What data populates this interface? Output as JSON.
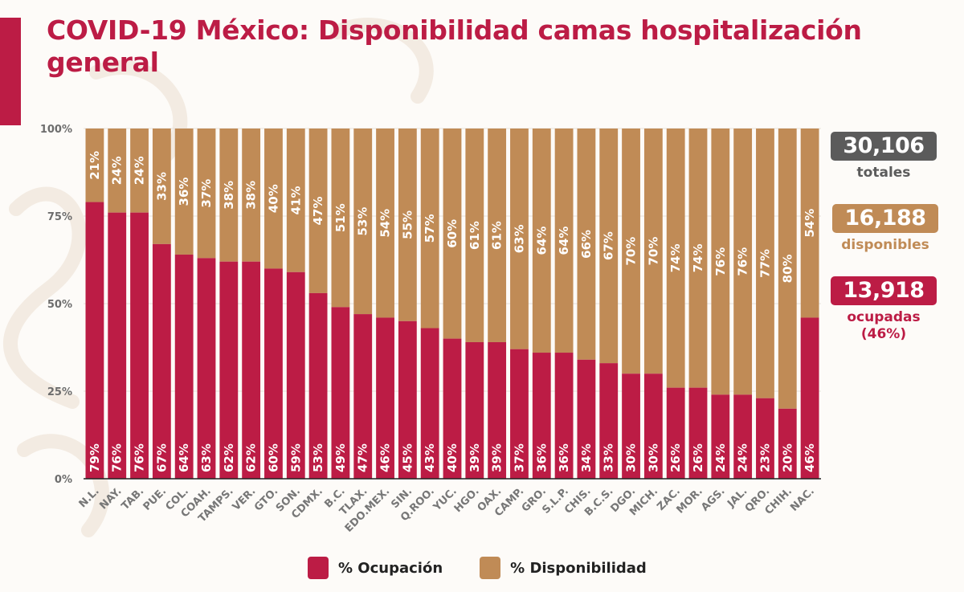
{
  "header": {
    "title": "COVID-19 México: Disponibilidad camas hospitalización general"
  },
  "colors": {
    "ocupacion": "#bc1c45",
    "disponibilidad": "#c08b56",
    "totales": "#5b5b5b",
    "brand": "#bc1c45"
  },
  "summary": {
    "totales": {
      "value": "30,106",
      "label": "totales"
    },
    "disponibles": {
      "value": "16,188",
      "label": "disponibles"
    },
    "ocupadas": {
      "value": "13,918",
      "label": "ocupadas",
      "sublabel": "(46%)"
    }
  },
  "legend": [
    {
      "label": "% Ocupación"
    },
    {
      "label": "% Disponibilidad"
    }
  ],
  "chart_data": {
    "type": "bar",
    "stacked": true,
    "title": "COVID-19 México: Disponibilidad camas hospitalización general",
    "xlabel": "",
    "ylabel": "",
    "ylim": [
      0,
      100
    ],
    "yticks": [
      0,
      25,
      50,
      75,
      100
    ],
    "ytick_labels": [
      "0%",
      "25%",
      "50%",
      "75%",
      "100%"
    ],
    "grid": true,
    "legend_position": "bottom",
    "categories": [
      "N.L.",
      "NAY.",
      "TAB.",
      "PUE.",
      "COL.",
      "COAH.",
      "TAMPS.",
      "VER.",
      "GTO.",
      "SON.",
      "CDMX.",
      "B.C.",
      "TLAX.",
      "EDO.MEX.",
      "SIN.",
      "Q.ROO.",
      "YUC.",
      "HGO.",
      "OAX.",
      "CAMP.",
      "GRO.",
      "S.L.P.",
      "CHIS.",
      "B.C.S.",
      "DGO.",
      "MICH.",
      "ZAC.",
      "MOR.",
      "AGS.",
      "JAL.",
      "QRO.",
      "CHIH.",
      "NAC."
    ],
    "series": [
      {
        "name": "% Ocupación",
        "values": [
          79,
          76,
          76,
          67,
          64,
          63,
          62,
          62,
          60,
          59,
          53,
          49,
          47,
          46,
          45,
          43,
          40,
          39,
          39,
          37,
          36,
          36,
          34,
          33,
          30,
          30,
          26,
          26,
          24,
          24,
          23,
          20,
          46
        ]
      },
      {
        "name": "% Disponibilidad",
        "values": [
          21,
          24,
          24,
          33,
          36,
          37,
          38,
          38,
          40,
          41,
          47,
          51,
          53,
          54,
          55,
          57,
          60,
          61,
          61,
          63,
          64,
          64,
          66,
          67,
          70,
          70,
          74,
          74,
          76,
          76,
          77,
          80,
          54
        ]
      }
    ]
  }
}
